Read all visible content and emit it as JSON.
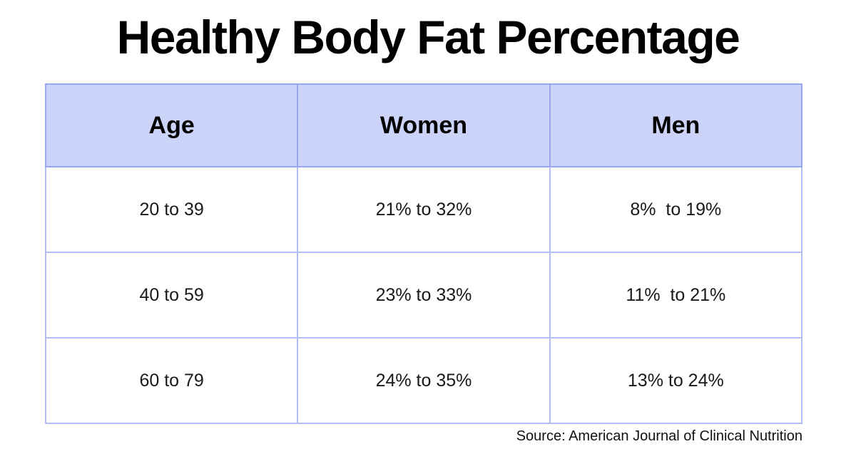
{
  "title": "Healthy Body Fat Percentage",
  "source": "Source: American Journal of Clinical Nutrition",
  "colors": {
    "header_bg": "#ccd3f8",
    "border_header": "#98a8f0",
    "border_body": "#b2bdf8",
    "title_color": "#000000"
  },
  "chart_data": {
    "type": "table",
    "title": "Healthy Body Fat Percentage",
    "columns": [
      "Age",
      "Women",
      "Men"
    ],
    "rows": [
      [
        "20 to 39",
        "21% to 32%",
        "8%  to 19%"
      ],
      [
        "40 to 59",
        "23% to 33%",
        "11%  to 21%"
      ],
      [
        "60 to 79",
        "24% to 35%",
        "13% to 24%"
      ]
    ],
    "source": "Source: American Journal of Clinical Nutrition",
    "layout": {
      "header_fill": "#ccd3f8",
      "body_fill": "#ffffff",
      "grid": true
    }
  }
}
